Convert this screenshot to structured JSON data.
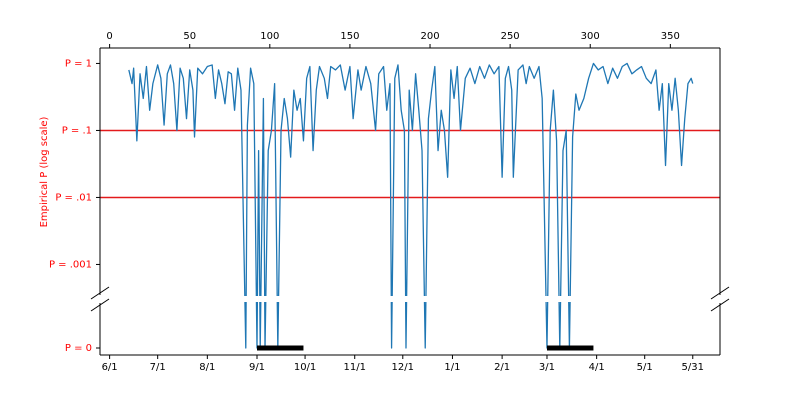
{
  "chart_data": {
    "type": "line",
    "ylabel": "Empirical P (log scale)",
    "label_color": "#ff0000",
    "log_y": true,
    "xlim": [
      -6,
      381
    ],
    "ylim": [
      0.00035,
      1.7
    ],
    "xticks": [
      0,
      50,
      100,
      150,
      200,
      250,
      300,
      350
    ],
    "date_ticks": [
      {
        "value": 0,
        "label": "6/1"
      },
      {
        "value": 30,
        "label": "7/1"
      },
      {
        "value": 61,
        "label": "8/1"
      },
      {
        "value": 92,
        "label": "9/1"
      },
      {
        "value": 122,
        "label": "10/1"
      },
      {
        "value": 153,
        "label": "11/1"
      },
      {
        "value": 183,
        "label": "12/1"
      },
      {
        "value": 214,
        "label": "1/1"
      },
      {
        "value": 245,
        "label": "2/1"
      },
      {
        "value": 273,
        "label": "3/1"
      },
      {
        "value": 304,
        "label": "4/1"
      },
      {
        "value": 334,
        "label": "5/1"
      },
      {
        "value": 364,
        "label": "5/31"
      }
    ],
    "yticks": [
      {
        "value": 1,
        "label": "P = 1"
      },
      {
        "value": 0.1,
        "label": "P = .1"
      },
      {
        "value": 0.01,
        "label": "P = .01"
      },
      {
        "value": 0.001,
        "label": "P = .001"
      }
    ],
    "zero_tick": {
      "value": 0,
      "label": "P = 0"
    },
    "hlines": [
      0.1,
      0.01
    ],
    "hline_color": "#e31a1c",
    "spans": [
      [
        92,
        121
      ],
      [
        273,
        302
      ]
    ],
    "span_color": "#000000",
    "series": [
      {
        "color": "#1f77b4",
        "x": [
          12,
          14,
          15,
          17,
          19,
          21,
          23,
          25,
          27,
          30,
          32,
          34,
          36,
          38,
          40,
          42,
          44,
          46,
          48,
          50,
          52,
          53,
          55,
          58,
          61,
          64,
          66,
          68,
          70,
          72,
          74,
          76,
          78,
          80,
          82,
          85,
          86,
          88,
          90,
          92,
          93,
          94,
          96,
          97,
          99,
          101,
          103,
          105,
          107,
          109,
          111,
          113,
          115,
          117,
          119,
          121,
          123,
          125,
          127,
          129,
          131,
          134,
          136,
          138,
          141,
          144,
          147,
          150,
          152,
          155,
          157,
          160,
          163,
          166,
          168,
          171,
          173,
          175,
          176,
          178,
          180,
          182,
          184,
          185,
          187,
          189,
          191,
          193,
          195,
          197,
          199,
          201,
          203,
          205,
          207,
          209,
          211,
          213,
          215,
          217,
          219,
          222,
          225,
          228,
          231,
          234,
          237,
          240,
          243,
          245,
          247,
          249,
          251,
          252,
          255,
          258,
          260,
          262,
          265,
          268,
          270,
          273,
          275,
          277,
          279,
          281,
          283,
          285,
          287,
          289,
          291,
          293,
          296,
          299,
          302,
          305,
          308,
          311,
          314,
          317,
          320,
          323,
          326,
          329,
          332,
          335,
          338,
          341,
          343,
          345,
          347,
          349,
          351,
          353,
          355,
          357,
          359,
          361,
          363,
          364
        ],
        "values": [
          0.8,
          0.5,
          0.85,
          0.07,
          0.7,
          0.3,
          0.9,
          0.2,
          0.5,
          0.95,
          0.6,
          0.12,
          0.7,
          0.95,
          0.5,
          0.1,
          0.85,
          0.6,
          0.15,
          0.8,
          0.4,
          0.08,
          0.85,
          0.7,
          0.9,
          0.95,
          0.3,
          0.8,
          0.5,
          0.25,
          0.75,
          0.7,
          0.2,
          0.85,
          0.4,
          0,
          0.12,
          0.85,
          0.5,
          0,
          0.05,
          0,
          0.3,
          0,
          0.05,
          0.1,
          0.5,
          0,
          0.1,
          0.3,
          0.15,
          0.04,
          0.4,
          0.2,
          0.3,
          0.07,
          0.6,
          0.9,
          0.05,
          0.4,
          0.9,
          0.6,
          0.3,
          0.9,
          0.8,
          0.95,
          0.4,
          0.9,
          0.15,
          0.8,
          0.4,
          0.9,
          0.5,
          0.1,
          0.7,
          0.9,
          0.2,
          0.5,
          0,
          0.6,
          0.95,
          0.2,
          0.1,
          0,
          0.4,
          0.1,
          0.7,
          0.2,
          0.05,
          0,
          0.15,
          0.4,
          0.9,
          0.05,
          0.2,
          0.1,
          0.02,
          0.8,
          0.3,
          0.9,
          0.1,
          0.6,
          0.85,
          0.5,
          0.9,
          0.6,
          0.95,
          0.7,
          0.9,
          0.02,
          0.6,
          0.9,
          0.4,
          0.02,
          0.8,
          0.95,
          0.5,
          0.9,
          0.6,
          0.9,
          0.3,
          0,
          0.1,
          0.4,
          0.07,
          0,
          0.05,
          0.1,
          0,
          0.08,
          0.35,
          0.2,
          0.3,
          0.6,
          1.0,
          0.8,
          0.9,
          0.5,
          0.85,
          0.6,
          0.9,
          1.0,
          0.7,
          0.8,
          0.9,
          0.6,
          0.5,
          0.8,
          0.2,
          0.5,
          0.03,
          0.5,
          0.2,
          0.6,
          0.2,
          0.03,
          0.15,
          0.5,
          0.6,
          0.5
        ]
      }
    ]
  }
}
